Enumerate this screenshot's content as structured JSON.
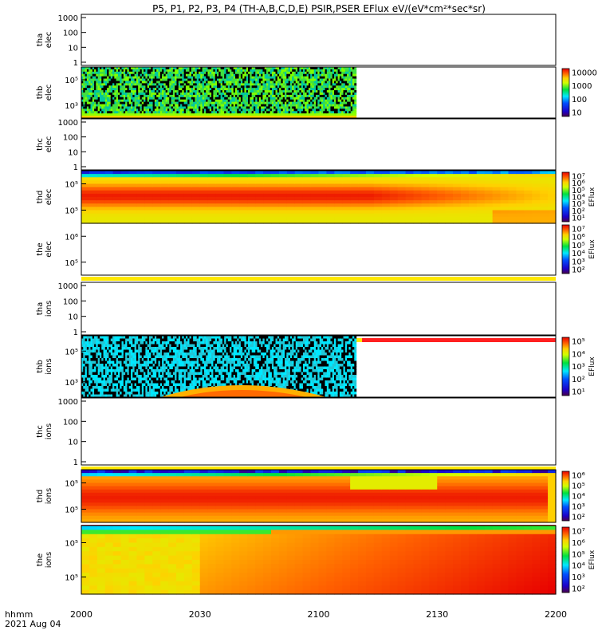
{
  "chart_data": {
    "type": "heatmap",
    "title": "P5, P1, P2, P3, P4 (TH-A,B,C,D,E) PSIR,PSER EFlux eV/(eV*cm²*sec*sr)",
    "time_label_1": "hhmm",
    "time_label_2": "2021 Aug 04",
    "x_ticks": [
      "2000",
      "2030",
      "2100",
      "2130",
      "2200"
    ],
    "x_range": [
      0,
      120
    ],
    "panels": [
      {
        "ylabel_1": "tha",
        "ylabel_2": "elec",
        "yticks": [
          "1000",
          "100",
          "10",
          "1"
        ],
        "kind": "empty",
        "colorbar": null
      },
      {
        "ylabel_1": "thb",
        "ylabel_2": "elec",
        "yticks": [
          "10⁵",
          "10³"
        ],
        "kind": "noise_green",
        "data_end": 69.5,
        "colorbar": {
          "ticks": [
            "10000",
            "1000",
            "100",
            "10"
          ],
          "label": ""
        }
      },
      {
        "ylabel_1": "thc",
        "ylabel_2": "elec",
        "yticks": [
          "1000",
          "100",
          "10",
          "1"
        ],
        "kind": "empty",
        "colorbar": null
      },
      {
        "ylabel_1": "thd",
        "ylabel_2": "elec",
        "yticks": [
          "10⁵",
          "10⁵"
        ],
        "kind": "thd_elec",
        "colorbar": {
          "ticks": [
            "10⁷",
            "10⁶",
            "10⁵",
            "10⁴",
            "10³",
            "10²",
            "10¹"
          ],
          "label": "EFlux"
        }
      },
      {
        "ylabel_1": "the",
        "ylabel_2": "elec",
        "yticks": [
          "10⁶",
          "10⁵"
        ],
        "kind": "empty_yellow_bottom",
        "colorbar": {
          "ticks": [
            "10⁷",
            "10⁶",
            "10⁵",
            "10⁴",
            "10³",
            "10²"
          ],
          "label": "EFlux"
        }
      },
      {
        "ylabel_1": "tha",
        "ylabel_2": "ions",
        "yticks": [
          "1000",
          "100",
          "10",
          "1"
        ],
        "kind": "empty_bar_bottom",
        "colorbar": null
      },
      {
        "ylabel_1": "thb",
        "ylabel_2": "ions",
        "yticks": [
          "10⁵",
          "10³"
        ],
        "kind": "noise_cyan",
        "data_end": 69.5,
        "colorbar": {
          "ticks": [
            "10⁵",
            "10⁴",
            "10³",
            "10²",
            "10¹"
          ],
          "label": "EFlux"
        }
      },
      {
        "ylabel_1": "thc",
        "ylabel_2": "ions",
        "yticks": [
          "1000",
          "100",
          "10",
          "1"
        ],
        "kind": "empty_yellow_bottom",
        "colorbar": null
      },
      {
        "ylabel_1": "thd",
        "ylabel_2": "ions",
        "yticks": [
          "10⁵",
          "10⁵"
        ],
        "kind": "thd_ions",
        "colorbar": {
          "ticks": [
            "10⁶",
            "10⁵",
            "10⁴",
            "10³",
            "10²"
          ],
          "label": ""
        }
      },
      {
        "ylabel_1": "the",
        "ylabel_2": "ions",
        "yticks": [
          "10⁵",
          "10⁵"
        ],
        "kind": "the_ions",
        "colorbar": {
          "ticks": [
            "10⁷",
            "10⁶",
            "10⁵",
            "10⁴",
            "10³",
            "10²"
          ],
          "label": "EFlux"
        }
      }
    ]
  }
}
